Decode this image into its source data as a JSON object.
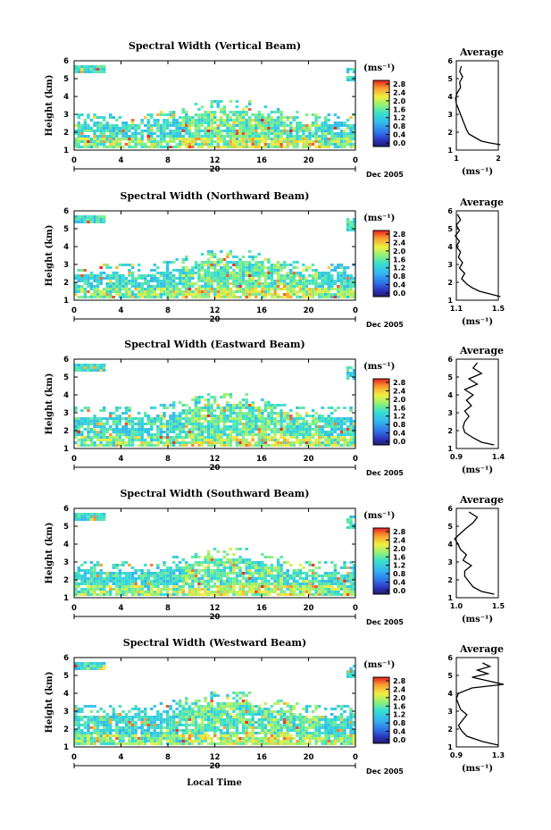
{
  "figure": {
    "xlabel": "Local Time",
    "date_marker": "20",
    "date_label": "Dec 2005",
    "ylabel": "Height (km)",
    "colorbar_unit": "(ms⁻¹)",
    "average_title": "Average",
    "average_xlabel": "(ms⁻¹)"
  },
  "chart_data": [
    {
      "type": "heatmap",
      "title": "Spectral Width (Vertical Beam)",
      "x_ticks": [
        "0",
        "4",
        "8",
        "12",
        "16",
        "20",
        "0"
      ],
      "y_ticks": [
        "1",
        "2",
        "3",
        "4",
        "5",
        "6"
      ],
      "xlim": [
        0,
        24
      ],
      "ylim": [
        1,
        6
      ],
      "colorbar": {
        "ticks": [
          "2.8",
          "2.4",
          "2.0",
          "1.6",
          "1.2",
          "0.8",
          "0.4",
          "0.0"
        ],
        "range": [
          0,
          2.8
        ]
      },
      "average": {
        "xlim": [
          1.0,
          2.0
        ],
        "x_ticks": [
          "1",
          "2"
        ],
        "profile": [
          [
            2.05,
            1.3
          ],
          [
            1.8,
            1.4
          ],
          [
            1.6,
            1.5
          ],
          [
            1.45,
            1.7
          ],
          [
            1.3,
            1.9
          ],
          [
            1.25,
            2.1
          ],
          [
            1.2,
            2.4
          ],
          [
            1.15,
            2.7
          ],
          [
            1.1,
            3.0
          ],
          [
            1.05,
            3.3
          ],
          [
            1.0,
            3.6
          ],
          [
            0.98,
            3.9
          ],
          [
            1.02,
            4.2
          ],
          [
            1.1,
            4.5
          ],
          [
            1.08,
            4.8
          ],
          [
            1.15,
            5.1
          ],
          [
            1.08,
            5.4
          ],
          [
            1.12,
            5.7
          ]
        ]
      }
    },
    {
      "type": "heatmap",
      "title": "Spectral Width (Northward Beam)",
      "x_ticks": [
        "0",
        "4",
        "8",
        "12",
        "16",
        "20",
        "0"
      ],
      "y_ticks": [
        "1",
        "2",
        "3",
        "4",
        "5",
        "6"
      ],
      "xlim": [
        0,
        24
      ],
      "ylim": [
        1,
        6
      ],
      "colorbar": {
        "ticks": [
          "2.8",
          "2.4",
          "2.0",
          "1.6",
          "1.2",
          "0.8",
          "0.4",
          "0.0"
        ],
        "range": [
          0,
          2.8
        ]
      },
      "average": {
        "xlim": [
          1.1,
          1.5
        ],
        "x_ticks": [
          "1.1",
          "1.5"
        ],
        "profile": [
          [
            1.52,
            1.2
          ],
          [
            1.42,
            1.35
          ],
          [
            1.32,
            1.5
          ],
          [
            1.25,
            1.7
          ],
          [
            1.2,
            1.9
          ],
          [
            1.15,
            2.2
          ],
          [
            1.18,
            2.5
          ],
          [
            1.13,
            2.8
          ],
          [
            1.16,
            3.1
          ],
          [
            1.12,
            3.4
          ],
          [
            1.14,
            3.7
          ],
          [
            1.1,
            4.0
          ],
          [
            1.13,
            4.3
          ],
          [
            1.09,
            4.6
          ],
          [
            1.13,
            4.9
          ],
          [
            1.1,
            5.2
          ],
          [
            1.14,
            5.5
          ],
          [
            1.11,
            5.8
          ]
        ]
      }
    },
    {
      "type": "heatmap",
      "title": "Spectral Width (Eastward Beam)",
      "x_ticks": [
        "0",
        "4",
        "8",
        "12",
        "16",
        "20",
        "0"
      ],
      "y_ticks": [
        "1",
        "2",
        "3",
        "4",
        "5",
        "6"
      ],
      "xlim": [
        0,
        24
      ],
      "ylim": [
        1,
        6
      ],
      "colorbar": {
        "ticks": [
          "2.8",
          "2.4",
          "2.0",
          "1.6",
          "1.2",
          "0.8",
          "0.4",
          "0.0"
        ],
        "range": [
          0,
          2.8
        ]
      },
      "average": {
        "xlim": [
          0.9,
          1.4
        ],
        "x_ticks": [
          "0.9",
          "1.4"
        ],
        "profile": [
          [
            1.35,
            1.2
          ],
          [
            1.2,
            1.35
          ],
          [
            1.1,
            1.6
          ],
          [
            1.0,
            1.9
          ],
          [
            0.98,
            2.2
          ],
          [
            1.0,
            2.5
          ],
          [
            1.05,
            2.8
          ],
          [
            1.0,
            3.1
          ],
          [
            1.08,
            3.4
          ],
          [
            1.02,
            3.7
          ],
          [
            1.1,
            4.0
          ],
          [
            1.0,
            4.3
          ],
          [
            1.15,
            4.6
          ],
          [
            1.05,
            4.9
          ],
          [
            1.2,
            5.2
          ],
          [
            1.1,
            5.5
          ],
          [
            1.15,
            5.8
          ]
        ]
      }
    },
    {
      "type": "heatmap",
      "title": "Spectral Width (Southward Beam)",
      "x_ticks": [
        "0",
        "4",
        "8",
        "12",
        "16",
        "20",
        "0"
      ],
      "y_ticks": [
        "1",
        "2",
        "3",
        "4",
        "5",
        "6"
      ],
      "xlim": [
        0,
        24
      ],
      "ylim": [
        1,
        6
      ],
      "colorbar": {
        "ticks": [
          "2.8",
          "2.4",
          "2.0",
          "1.6",
          "1.2",
          "0.8",
          "0.4",
          "0.0"
        ],
        "range": [
          0,
          2.8
        ]
      },
      "average": {
        "xlim": [
          1.0,
          1.5
        ],
        "x_ticks": [
          "1.0",
          "1.5"
        ],
        "profile": [
          [
            1.45,
            1.2
          ],
          [
            1.3,
            1.35
          ],
          [
            1.2,
            1.6
          ],
          [
            1.15,
            1.9
          ],
          [
            1.1,
            2.2
          ],
          [
            1.1,
            2.5
          ],
          [
            1.18,
            2.8
          ],
          [
            1.08,
            3.1
          ],
          [
            1.12,
            3.4
          ],
          [
            1.05,
            3.7
          ],
          [
            1.02,
            4.0
          ],
          [
            0.98,
            4.3
          ],
          [
            1.05,
            4.6
          ],
          [
            1.12,
            4.9
          ],
          [
            1.2,
            5.2
          ],
          [
            1.25,
            5.5
          ],
          [
            1.15,
            5.8
          ]
        ]
      }
    },
    {
      "type": "heatmap",
      "title": "Spectral Width (Westward Beam)",
      "x_ticks": [
        "0",
        "4",
        "8",
        "12",
        "16",
        "20",
        "0"
      ],
      "y_ticks": [
        "1",
        "2",
        "3",
        "4",
        "5",
        "6"
      ],
      "xlim": [
        0,
        24
      ],
      "ylim": [
        1,
        6
      ],
      "colorbar": {
        "ticks": [
          "2.8",
          "2.4",
          "2.0",
          "1.6",
          "1.2",
          "0.8",
          "0.4",
          "0.0"
        ],
        "range": [
          0,
          2.8
        ]
      },
      "average": {
        "xlim": [
          0.9,
          1.3
        ],
        "x_ticks": [
          "0.9",
          "1.3"
        ],
        "profile": [
          [
            1.3,
            1.1
          ],
          [
            1.15,
            1.3
          ],
          [
            1.0,
            1.6
          ],
          [
            0.95,
            1.9
          ],
          [
            0.92,
            2.2
          ],
          [
            0.96,
            2.5
          ],
          [
            1.0,
            2.8
          ],
          [
            0.94,
            3.1
          ],
          [
            0.92,
            3.4
          ],
          [
            0.9,
            3.7
          ],
          [
            0.92,
            4.0
          ],
          [
            1.05,
            4.3
          ],
          [
            1.35,
            4.5
          ],
          [
            1.2,
            4.7
          ],
          [
            1.05,
            4.9
          ],
          [
            1.2,
            5.1
          ],
          [
            1.1,
            5.3
          ],
          [
            1.22,
            5.5
          ],
          [
            1.15,
            5.7
          ]
        ]
      }
    }
  ]
}
